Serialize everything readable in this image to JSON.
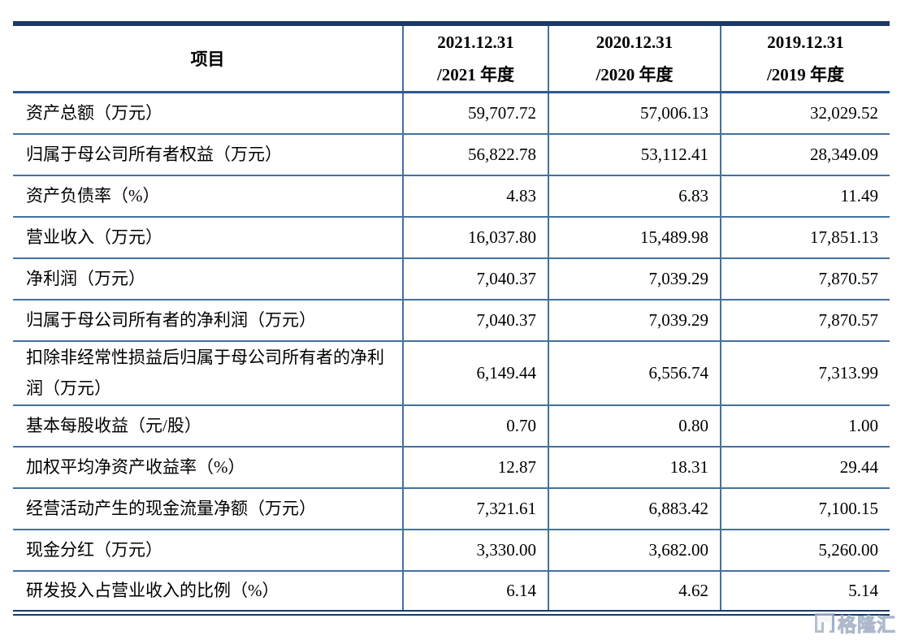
{
  "table": {
    "header": {
      "item_label": "项目",
      "periods": [
        {
          "line1": "2021.12.31",
          "line2": "/2021 年度"
        },
        {
          "line1": "2020.12.31",
          "line2": "/2020 年度"
        },
        {
          "line1": "2019.12.31",
          "line2": "/2019 年度"
        }
      ]
    },
    "rows": [
      {
        "label": "资产总额（万元）",
        "values": [
          "59,707.72",
          "57,006.13",
          "32,029.52"
        ]
      },
      {
        "label": "归属于母公司所有者权益（万元）",
        "values": [
          "56,822.78",
          "53,112.41",
          "28,349.09"
        ]
      },
      {
        "label": "资产负债率（%）",
        "values": [
          "4.83",
          "6.83",
          "11.49"
        ]
      },
      {
        "label": "营业收入（万元）",
        "values": [
          "16,037.80",
          "15,489.98",
          "17,851.13"
        ]
      },
      {
        "label": "净利润（万元）",
        "values": [
          "7,040.37",
          "7,039.29",
          "7,870.57"
        ]
      },
      {
        "label": "归属于母公司所有者的净利润（万元）",
        "values": [
          "7,040.37",
          "7,039.29",
          "7,870.57"
        ]
      },
      {
        "label": "扣除非经常性损益后归属于母公司所有者的净利润（万元）",
        "values": [
          "6,149.44",
          "6,556.74",
          "7,313.99"
        ],
        "tall": true
      },
      {
        "label": "基本每股收益（元/股）",
        "values": [
          "0.70",
          "0.80",
          "1.00"
        ]
      },
      {
        "label": "加权平均净资产收益率（%）",
        "values": [
          "12.87",
          "18.31",
          "29.44"
        ]
      },
      {
        "label": "经营活动产生的现金流量净额（万元）",
        "values": [
          "7,321.61",
          "6,883.42",
          "7,100.15"
        ]
      },
      {
        "label": "现金分红（万元）",
        "values": [
          "3,330.00",
          "3,682.00",
          "5,260.00"
        ]
      },
      {
        "label": "研发投入占营业收入的比例（%）",
        "values": [
          "6.14",
          "4.62",
          "5.14"
        ]
      }
    ]
  },
  "watermark": {
    "text": "格隆汇"
  },
  "colors": {
    "border_heavy": "#1b3a66",
    "grid_line": "#44719e",
    "text": "#000000",
    "watermark": "#aab4c5"
  }
}
